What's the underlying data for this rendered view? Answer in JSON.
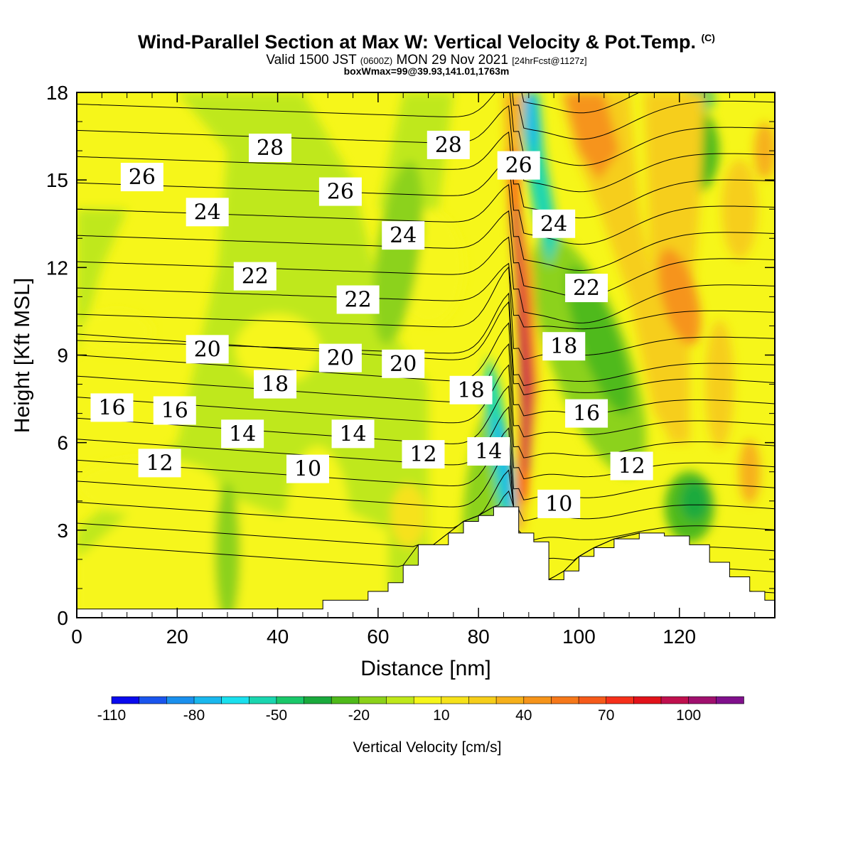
{
  "header": {
    "title": "Wind-Parallel Section at Max W: Vertical Velocity & Pot.Temp.",
    "copyright_mark": "(C)",
    "valid_prefix": "Valid 1500 JST",
    "valid_utc": "(0600Z)",
    "valid_date": "MON 29 Nov 2021",
    "forecast_info": "[24hrFcst@1127z]",
    "box_info": "boxWmax=99@39.93,141.01,1763m"
  },
  "chart_data": {
    "type": "heatmap",
    "xlabel": "Distance [nm]",
    "ylabel": "Height [Kft MSL]",
    "xlim": [
      0,
      139
    ],
    "ylim": [
      0,
      18
    ],
    "x_ticks": [
      0,
      20,
      40,
      60,
      80,
      100,
      120
    ],
    "y_ticks": [
      0,
      3,
      6,
      9,
      12,
      15,
      18
    ],
    "x_tick_labels": [
      "0",
      "20",
      "40",
      "60",
      "80",
      "100",
      "120"
    ],
    "y_tick_labels": [
      "0",
      "3",
      "6",
      "9",
      "12",
      "15",
      "18"
    ],
    "colorbar": {
      "label": "Vertical Velocity [cm/s]",
      "levels": [
        -110,
        -100,
        -90,
        -80,
        -70,
        -60,
        -50,
        -40,
        -30,
        -20,
        -10,
        0,
        10,
        20,
        30,
        40,
        50,
        60,
        70,
        80,
        90,
        100,
        110,
        120
      ],
      "tick_labels": [
        "-110",
        "-80",
        "-50",
        "-20",
        "10",
        "40",
        "70",
        "100"
      ],
      "tick_values": [
        -110,
        -80,
        -50,
        -20,
        10,
        40,
        70,
        100
      ],
      "colors": [
        "#0a0aee",
        "#1a55ee",
        "#1a90ee",
        "#1ab8ee",
        "#1ae0ee",
        "#1ad6b0",
        "#1ac86a",
        "#1aaa3c",
        "#4fba1a",
        "#8cd21a",
        "#bfe81a",
        "#f6f61a",
        "#f6e21a",
        "#f6ce1a",
        "#f6b01a",
        "#f6941a",
        "#f6781a",
        "#f65a1a",
        "#f6301a",
        "#e2121a",
        "#c0104e",
        "#a0106e",
        "#80108c"
      ]
    },
    "theta_contour_labels": [
      {
        "x": 7,
        "y": 7.2,
        "text": "16"
      },
      {
        "x": 19.5,
        "y": 7.1,
        "text": "16"
      },
      {
        "x": 16.5,
        "y": 5.3,
        "text": "12"
      },
      {
        "x": 33,
        "y": 6.3,
        "text": "14"
      },
      {
        "x": 39.5,
        "y": 8.0,
        "text": "18"
      },
      {
        "x": 26,
        "y": 9.2,
        "text": "20"
      },
      {
        "x": 35.5,
        "y": 11.7,
        "text": "22"
      },
      {
        "x": 26,
        "y": 13.9,
        "text": "24"
      },
      {
        "x": 13,
        "y": 15.1,
        "text": "26"
      },
      {
        "x": 38.5,
        "y": 16.1,
        "text": "28"
      },
      {
        "x": 46,
        "y": 5.1,
        "text": "10"
      },
      {
        "x": 55,
        "y": 6.3,
        "text": "14"
      },
      {
        "x": 69,
        "y": 5.6,
        "text": "12"
      },
      {
        "x": 52.5,
        "y": 8.9,
        "text": "20"
      },
      {
        "x": 65,
        "y": 8.7,
        "text": "20"
      },
      {
        "x": 78.5,
        "y": 7.8,
        "text": "18"
      },
      {
        "x": 82,
        "y": 5.7,
        "text": "14"
      },
      {
        "x": 56,
        "y": 10.9,
        "text": "22"
      },
      {
        "x": 65,
        "y": 13.1,
        "text": "24"
      },
      {
        "x": 52.5,
        "y": 14.6,
        "text": "26"
      },
      {
        "x": 74,
        "y": 16.2,
        "text": "28"
      },
      {
        "x": 88,
        "y": 15.5,
        "text": "26"
      },
      {
        "x": 95,
        "y": 13.5,
        "text": "24"
      },
      {
        "x": 101.5,
        "y": 11.3,
        "text": "22"
      },
      {
        "x": 97,
        "y": 9.3,
        "text": "18"
      },
      {
        "x": 101.5,
        "y": 7.0,
        "text": "16"
      },
      {
        "x": 110.5,
        "y": 5.2,
        "text": "12"
      },
      {
        "x": 96,
        "y": 3.9,
        "text": "10"
      }
    ],
    "terrain_height_kft": [
      {
        "x": 0,
        "h": 0.3
      },
      {
        "x": 48,
        "h": 0.3
      },
      {
        "x": 49,
        "h": 0.6
      },
      {
        "x": 56,
        "h": 0.6
      },
      {
        "x": 58,
        "h": 0.9
      },
      {
        "x": 62,
        "h": 1.2
      },
      {
        "x": 65,
        "h": 1.8
      },
      {
        "x": 68,
        "h": 2.5
      },
      {
        "x": 71,
        "h": 2.5
      },
      {
        "x": 74,
        "h": 2.9
      },
      {
        "x": 77,
        "h": 3.3
      },
      {
        "x": 80,
        "h": 3.5
      },
      {
        "x": 83,
        "h": 3.8
      },
      {
        "x": 87,
        "h": 3.8
      },
      {
        "x": 88,
        "h": 2.9
      },
      {
        "x": 91,
        "h": 2.6
      },
      {
        "x": 94,
        "h": 1.3
      },
      {
        "x": 97,
        "h": 1.6
      },
      {
        "x": 100,
        "h": 2.1
      },
      {
        "x": 103,
        "h": 2.4
      },
      {
        "x": 107,
        "h": 2.7
      },
      {
        "x": 112,
        "h": 2.9
      },
      {
        "x": 117,
        "h": 2.8
      },
      {
        "x": 122,
        "h": 2.5
      },
      {
        "x": 126,
        "h": 1.9
      },
      {
        "x": 130,
        "h": 1.4
      },
      {
        "x": 134,
        "h": 0.9
      },
      {
        "x": 137,
        "h": 0.6
      },
      {
        "x": 139,
        "h": 0.6
      }
    ]
  }
}
